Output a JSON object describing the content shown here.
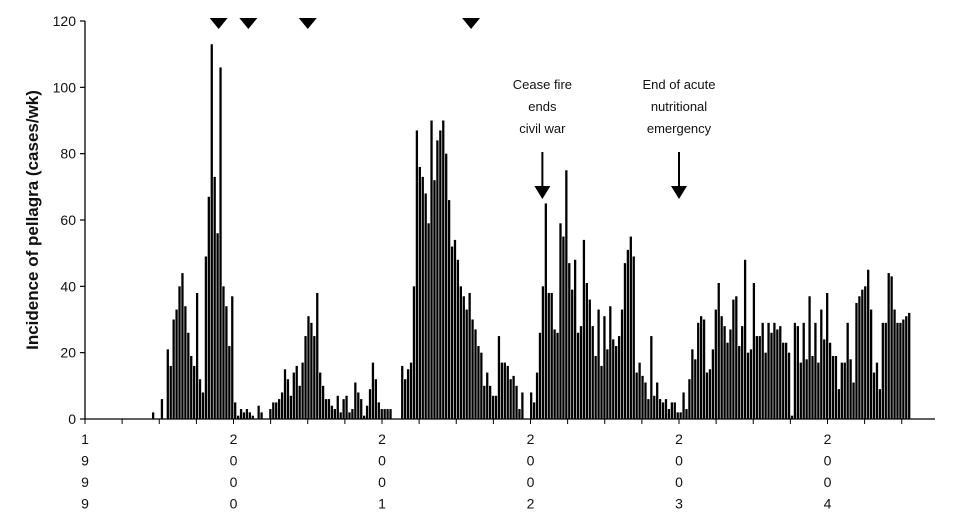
{
  "chart_data": {
    "type": "bar",
    "ylabel": "Incidence of pellagra (cases/wk)",
    "xlabel": "",
    "ylim": [
      0,
      120
    ],
    "yticks": [
      "0",
      "20",
      "40",
      "60",
      "80",
      "100",
      "120"
    ],
    "x_tick_labels": [
      {
        "year": 1999,
        "digits": [
          "1",
          "9",
          "9",
          "9"
        ]
      },
      {
        "year": 2000,
        "digits": [
          "2",
          "0",
          "0",
          "0"
        ]
      },
      {
        "year": 2001,
        "digits": [
          "2",
          "0",
          "0",
          "1"
        ]
      },
      {
        "year": 2002,
        "digits": [
          "2",
          "0",
          "0",
          "2"
        ]
      },
      {
        "year": 2003,
        "digits": [
          "2",
          "0",
          "0",
          "3"
        ]
      },
      {
        "year": 2004,
        "digits": [
          "2",
          "0",
          "0",
          "4"
        ]
      }
    ],
    "grid": false,
    "legend": "none",
    "bar_color": "#000000",
    "marker_years": [
      1999.9,
      2000.1,
      2000.5,
      2001.6
    ],
    "annotations": [
      {
        "id": "ceasefire",
        "lines": [
          "Cease fire",
          "ends",
          "civil war"
        ],
        "year": 2002.08
      },
      {
        "id": "end-emergency",
        "lines": [
          "End of acute",
          "nutritional",
          "emergency"
        ],
        "year": 2003.0
      }
    ],
    "weekly_cases": [
      2,
      0,
      0,
      6,
      0,
      21,
      16,
      30,
      33,
      40,
      44,
      34,
      26,
      19,
      16,
      38,
      12,
      8,
      49,
      67,
      113,
      73,
      56,
      106,
      40,
      34,
      22,
      37,
      5,
      1,
      3,
      2,
      3,
      2,
      1,
      0,
      4,
      2,
      0,
      0,
      3,
      5,
      5,
      6,
      8,
      15,
      12,
      7,
      14,
      16,
      10,
      17,
      25,
      31,
      29,
      25,
      38,
      14,
      10,
      6,
      6,
      4,
      3,
      7,
      2,
      6,
      7,
      2,
      3,
      11,
      8,
      6,
      1,
      4,
      9,
      17,
      12,
      5,
      3,
      3,
      3,
      3,
      0,
      0,
      0,
      16,
      12,
      15,
      17,
      40,
      87,
      76,
      73,
      68,
      59,
      90,
      72,
      84,
      87,
      90,
      80,
      66,
      52,
      54,
      48,
      40,
      37,
      33,
      38,
      30,
      27,
      22,
      20,
      10,
      14,
      10,
      7,
      7,
      25,
      17,
      17,
      16,
      12,
      13,
      10,
      3,
      8,
      0,
      0,
      8,
      5,
      14,
      26,
      40,
      65,
      38,
      38,
      27,
      26,
      59,
      55,
      75,
      47,
      39,
      48,
      26,
      28,
      54,
      41,
      36,
      28,
      19,
      33,
      16,
      31,
      21,
      34,
      24,
      22,
      25,
      33,
      47,
      51,
      55,
      49,
      14,
      17,
      13,
      11,
      6,
      25,
      7,
      11,
      6,
      5,
      6,
      3,
      5,
      5,
      2,
      2,
      8,
      3,
      12,
      21,
      18,
      29,
      31,
      30,
      14,
      15,
      21,
      33,
      41,
      31,
      28,
      23,
      27,
      36,
      37,
      22,
      28,
      48,
      20,
      21,
      41,
      25,
      25,
      29,
      20,
      29,
      26,
      29,
      27,
      28,
      23,
      23,
      20,
      1,
      29,
      28,
      17,
      29,
      18,
      37,
      19,
      29,
      17,
      33,
      24,
      38,
      23,
      19,
      19,
      9,
      17,
      17,
      29,
      18,
      11,
      35,
      37,
      39,
      40,
      45,
      33,
      14,
      17,
      9,
      29,
      29,
      44,
      43,
      33,
      29,
      29,
      30,
      31,
      32
    ]
  }
}
